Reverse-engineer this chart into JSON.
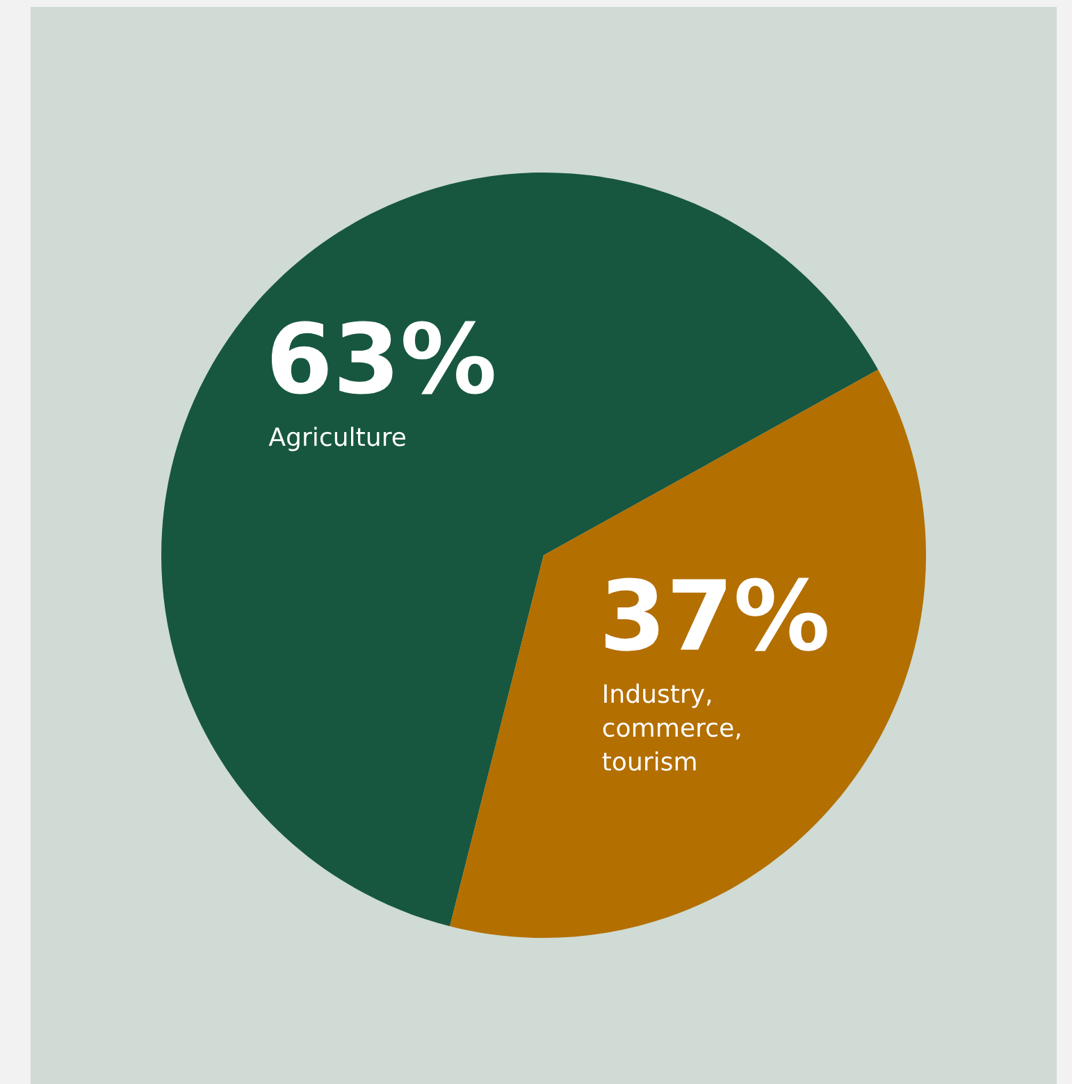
{
  "chart_data": {
    "type": "pie",
    "categories": [
      "Agriculture",
      "Industry,\ncommerce,\ntourism"
    ],
    "values": [
      63,
      37
    ],
    "value_labels": [
      "63%",
      "37%"
    ],
    "colors": [
      "#17573f",
      "#b36f00"
    ],
    "legend": false
  }
}
